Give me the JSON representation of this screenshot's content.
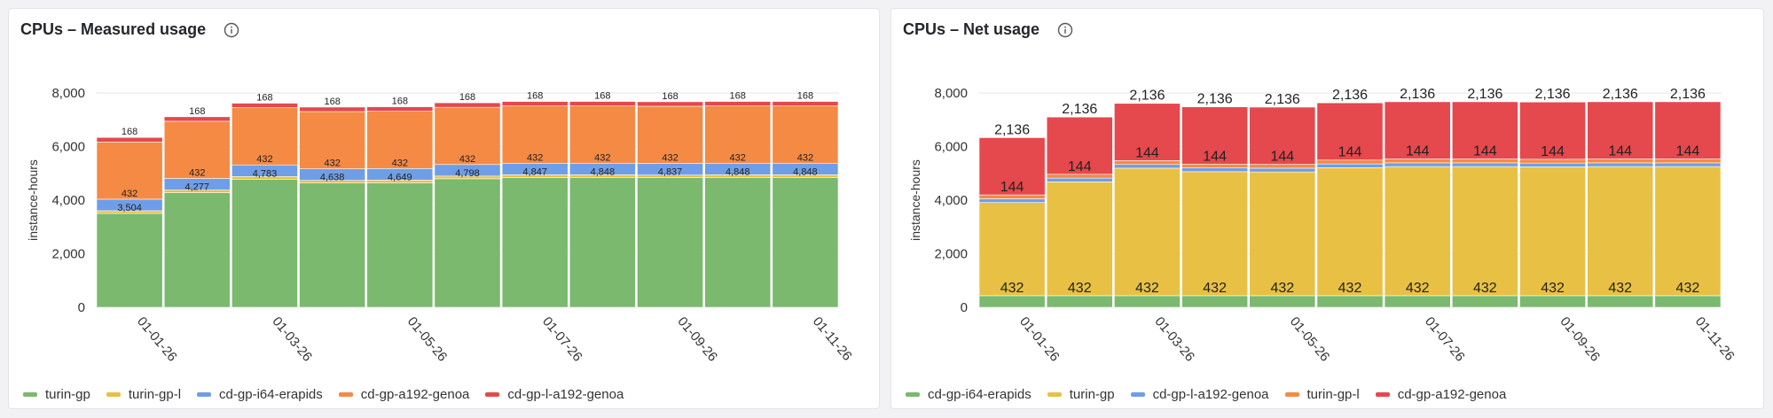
{
  "panels": [
    {
      "title": "CPUs – Measured usage",
      "info_icon": "info-circle-icon",
      "chart_data": {
        "type": "bar",
        "stacked": true,
        "xlabel": "",
        "ylabel": "instance-hours",
        "ylim": [
          0,
          8000
        ],
        "yticks": [
          "0",
          "2,000",
          "4,000",
          "6,000",
          "8,000"
        ],
        "yticks_values": [
          0,
          2000,
          4000,
          6000,
          8000
        ],
        "categories": [
          "01-01-26",
          "01-02-26",
          "01-03-26",
          "01-04-26",
          "01-05-26",
          "01-06-26",
          "01-07-26",
          "01-08-26",
          "01-09-26",
          "01-10-26",
          "01-11-26"
        ],
        "xtick_labels_shown": [
          "01-01-26",
          "",
          "01-03-26",
          "",
          "01-05-26",
          "",
          "01-07-26",
          "",
          "01-09-26",
          "",
          "01-11-26"
        ],
        "grid": true,
        "legend_position": "bottom-left",
        "series": [
          {
            "name": "turin-gp",
            "color": "#7ab96e",
            "values": [
              3504,
              4277,
              4783,
              4638,
              4649,
              4798,
              4847,
              4848,
              4837,
              4848,
              4848
            ]
          },
          {
            "name": "turin-gp-l",
            "color": "#e8c144",
            "values": [
              100,
              100,
              100,
              100,
              100,
              100,
              100,
              100,
              100,
              100,
              100
            ]
          },
          {
            "name": "cd-gp-i64-erapids",
            "color": "#6f9ee8",
            "values": [
              432,
              432,
              432,
              432,
              432,
              432,
              432,
              432,
              432,
              432,
              432
            ]
          },
          {
            "name": "cd-gp-a192-genoa",
            "color": "#f58a44",
            "values": [
              2136,
              2136,
              2136,
              2136,
              2136,
              2136,
              2136,
              2136,
              2136,
              2136,
              2136
            ]
          },
          {
            "name": "cd-gp-l-a192-genoa",
            "color": "#e5484d",
            "values": [
              168,
              168,
              168,
              168,
              168,
              168,
              168,
              168,
              168,
              168,
              168
            ]
          }
        ],
        "data_labels": [
          {
            "series": "turin-gp",
            "values": [
              "3,504",
              "4,277",
              "4,783",
              "4,638",
              "4,649",
              "4,798",
              "4,847",
              "4,848",
              "4,837",
              "4,848",
              "4,848"
            ]
          },
          {
            "series": "cd-gp-i64-erapids",
            "values": [
              "432",
              "432",
              "432",
              "432",
              "432",
              "432",
              "432",
              "432",
              "432",
              "432",
              "432"
            ]
          },
          {
            "series": "cd-gp-l-a192-genoa",
            "values": [
              "168",
              "168",
              "168",
              "168",
              "168",
              "168",
              "168",
              "168",
              "168",
              "168",
              "168"
            ]
          }
        ]
      }
    },
    {
      "title": "CPUs – Net usage",
      "info_icon": "info-circle-icon",
      "chart_data": {
        "type": "bar",
        "stacked": true,
        "xlabel": "",
        "ylabel": "instance-hours",
        "ylim": [
          0,
          8000
        ],
        "yticks": [
          "0",
          "2,000",
          "4,000",
          "6,000",
          "8,000"
        ],
        "yticks_values": [
          0,
          2000,
          4000,
          6000,
          8000
        ],
        "categories": [
          "01-01-26",
          "01-02-26",
          "01-03-26",
          "01-04-26",
          "01-05-26",
          "01-06-26",
          "01-07-26",
          "01-08-26",
          "01-09-26",
          "01-10-26",
          "01-11-26"
        ],
        "xtick_labels_shown": [
          "01-01-26",
          "",
          "01-03-26",
          "",
          "01-05-26",
          "",
          "01-07-26",
          "",
          "01-09-26",
          "",
          "01-11-26"
        ],
        "grid": true,
        "legend_position": "bottom-left",
        "series": [
          {
            "name": "cd-gp-i64-erapids",
            "color": "#7ab96e",
            "values": [
              432,
              432,
              432,
              432,
              432,
              432,
              432,
              432,
              432,
              432,
              432
            ]
          },
          {
            "name": "turin-gp",
            "color": "#e8c144",
            "values": [
              3480,
              4250,
              4760,
              4630,
              4620,
              4780,
              4820,
              4820,
              4810,
              4820,
              4820
            ]
          },
          {
            "name": "cd-gp-l-a192-genoa",
            "color": "#6f9ee8",
            "values": [
              140,
              140,
              140,
              140,
              140,
              140,
              140,
              140,
              140,
              140,
              140
            ]
          },
          {
            "name": "turin-gp-l",
            "color": "#f58a44",
            "values": [
              144,
              144,
              144,
              144,
              144,
              144,
              144,
              144,
              144,
              144,
              144
            ]
          },
          {
            "name": "cd-gp-a192-genoa",
            "color": "#e5484d",
            "values": [
              2136,
              2136,
              2136,
              2136,
              2136,
              2136,
              2136,
              2136,
              2136,
              2136,
              2136
            ]
          }
        ],
        "data_labels": [
          {
            "series": "cd-gp-i64-erapids",
            "values": [
              "432",
              "432",
              "432",
              "432",
              "432",
              "432",
              "432",
              "432",
              "432",
              "432",
              "432"
            ]
          },
          {
            "series": "turin-gp-l",
            "values": [
              "144",
              "144",
              "144",
              "144",
              "144",
              "144",
              "144",
              "144",
              "144",
              "144",
              "144"
            ]
          },
          {
            "series": "cd-gp-a192-genoa",
            "values": [
              "2,136",
              "2,136",
              "2,136",
              "2,136",
              "2,136",
              "2,136",
              "2,136",
              "2,136",
              "2,136",
              "2,136",
              "2,136"
            ]
          }
        ]
      }
    }
  ]
}
